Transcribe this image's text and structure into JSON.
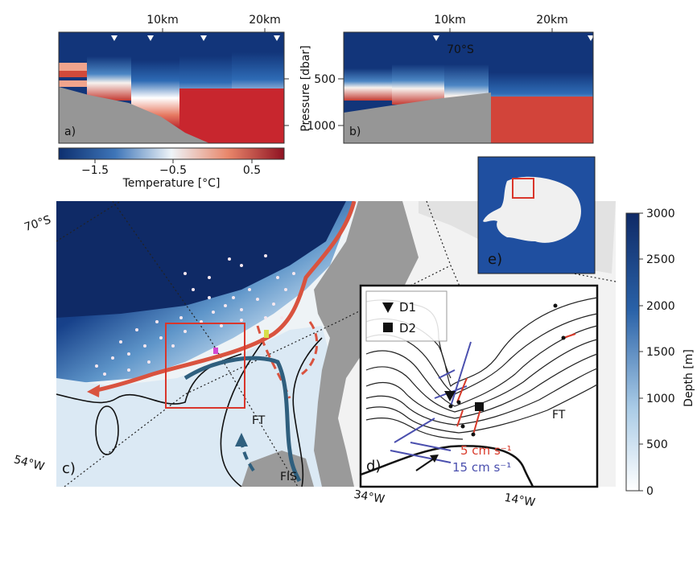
{
  "panels": {
    "a": {
      "label": "a)",
      "distance_ticks": [
        "10km",
        "20km"
      ]
    },
    "b": {
      "label": "b)",
      "distance_ticks": [
        "10km",
        "20km"
      ],
      "latitude_label": "70°S",
      "ylabel": "Pressure [dbar]",
      "pressure_ticks": [
        "500",
        "1000"
      ]
    },
    "temperature_colorbar": {
      "label": "Temperature [°C]",
      "ticks": [
        "−1.5",
        "−0.5",
        "0.5"
      ]
    },
    "c": {
      "label": "c)",
      "lat_label": "70°S",
      "lon_labels": [
        "54°W",
        "34°W",
        "14°W"
      ],
      "region_label": "FT",
      "shelf_label": "FIS"
    },
    "d": {
      "label": "d)",
      "legend": [
        {
          "symbol": "triangle-down",
          "label": "D1"
        },
        {
          "symbol": "square",
          "label": "D2"
        }
      ],
      "region_label": "FT",
      "scale_red": "5 cm s⁻¹",
      "scale_blue": "15 cm s⁻¹"
    },
    "e": {
      "label": "e)"
    },
    "depth_colorbar": {
      "label": "Depth [m]",
      "ticks": [
        "3000",
        "2500",
        "2000",
        "1500",
        "1000",
        "500",
        "0"
      ]
    }
  },
  "colors": {
    "warm_current": "#d9533f",
    "cold_current": "#2f5f7e",
    "scale_red": "#d93a2a",
    "scale_blue": "#4a4fae",
    "deep_ocean": "#0f2a66",
    "land": "#9a9a9a"
  }
}
